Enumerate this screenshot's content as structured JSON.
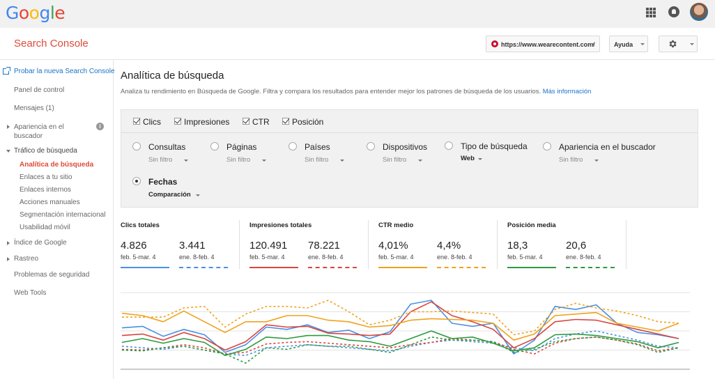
{
  "topbar": {
    "logo_letters": [
      {
        "ch": "G",
        "color": "#4285f4"
      },
      {
        "ch": "o",
        "color": "#ea4335"
      },
      {
        "ch": "o",
        "color": "#fbbc05"
      },
      {
        "ch": "g",
        "color": "#4285f4"
      },
      {
        "ch": "l",
        "color": "#34a853"
      },
      {
        "ch": "e",
        "color": "#ea4335"
      }
    ],
    "icons": [
      "apps-icon",
      "notifications-icon",
      "avatar"
    ]
  },
  "header": {
    "app_title": "Search Console",
    "site_url": "https://www.wearecontent.com/",
    "help_label": "Ayuda",
    "settings_icon": "gear-icon"
  },
  "sidebar": {
    "try_new": "Probar la nueva Search Console",
    "dashboard": "Panel de control",
    "messages": "Mensajes (1)",
    "appearance": "Apariencia en el buscador",
    "search_traffic": "Tráfico de búsqueda",
    "search_analytics": "Analítica de búsqueda",
    "links_to_site": "Enlaces a tu sitio",
    "internal_links": "Enlaces internos",
    "manual_actions": "Acciones manuales",
    "intl_targeting": "Segmentación internacional",
    "mobile_usability": "Usabilidad móvil",
    "google_index": "Índice de Google",
    "crawl": "Rastreo",
    "security_issues": "Problemas de seguridad",
    "web_tools": "Web Tools"
  },
  "main": {
    "title": "Analítica de búsqueda",
    "description": "Analiza tu rendimiento en Búsqueda de Google. Filtra y compara los resultados para entender mejor los patrones de búsqueda de los usuarios.",
    "more_info": "Más información",
    "metrics": [
      {
        "label": "Clics",
        "checked": true
      },
      {
        "label": "Impresiones",
        "checked": true
      },
      {
        "label": "CTR",
        "checked": true
      },
      {
        "label": "Posición",
        "checked": true
      }
    ],
    "dimensions": {
      "queries": {
        "label": "Consultas",
        "sub": "Sin filtro"
      },
      "pages": {
        "label": "Páginas",
        "sub": "Sin filtro"
      },
      "countries": {
        "label": "Países",
        "sub": "Sin filtro"
      },
      "devices": {
        "label": "Dispositivos",
        "sub": "Sin filtro"
      },
      "search_type": {
        "label": "Tipo de búsqueda",
        "sub": "Web"
      },
      "appearance": {
        "label": "Apariencia en el buscador",
        "sub": "Sin filtro"
      },
      "dates": {
        "label": "Fechas",
        "sub": "Comparación",
        "selected": true
      }
    },
    "stats": [
      {
        "title": "Clics totales",
        "a": "4.826",
        "a_range": "feb. 5-mar. 4",
        "b": "3.441",
        "b_range": "ene. 8-feb. 4",
        "color": "#4a90e2"
      },
      {
        "title": "Impresiones totales",
        "a": "120.491",
        "a_range": "feb. 5-mar. 4",
        "b": "78.221",
        "b_range": "ene. 8-feb. 4",
        "color": "#d9453f"
      },
      {
        "title": "CTR medio",
        "a": "4,01%",
        "a_range": "feb. 5-mar. 4",
        "b": "4,4%",
        "b_range": "ene. 8-feb. 4",
        "color": "#f0a21c"
      },
      {
        "title": "Posición media",
        "a": "18,3",
        "a_range": "feb. 5-mar. 4",
        "b": "20,6",
        "b_range": "ene. 8-feb. 4",
        "color": "#2b9a3e"
      }
    ]
  },
  "chart_data": {
    "type": "line",
    "grid": true,
    "ylim": [
      0,
      100
    ],
    "series": [
      {
        "name": "Clics totales",
        "period": "feb. 5-mar. 4",
        "style": "solid",
        "color": "#4a90e2",
        "values": [
          54,
          56,
          43,
          52,
          45,
          22,
          32,
          55,
          52,
          58,
          48,
          51,
          40,
          49,
          85,
          90,
          60,
          56,
          60,
          20,
          38,
          82,
          78,
          84,
          60,
          48,
          45,
          40
        ]
      },
      {
        "name": "Clics totales",
        "period": "ene. 8-feb. 4",
        "style": "dashed",
        "color": "#4a90e2",
        "values": [
          30,
          28,
          26,
          30,
          25,
          20,
          18,
          28,
          30,
          32,
          30,
          28,
          26,
          24,
          30,
          35,
          38,
          36,
          34,
          28,
          24,
          40,
          46,
          50,
          44,
          38,
          30,
          28
        ]
      },
      {
        "name": "Impresiones totales",
        "period": "feb. 5-mar. 4",
        "style": "solid",
        "color": "#d9453f",
        "values": [
          44,
          46,
          38,
          48,
          40,
          25,
          36,
          58,
          55,
          56,
          47,
          46,
          44,
          46,
          75,
          88,
          70,
          62,
          52,
          28,
          40,
          62,
          65,
          64,
          58,
          52,
          46,
          40
        ]
      },
      {
        "name": "Impresiones totales",
        "period": "ene. 8-feb. 4",
        "style": "dashed",
        "color": "#d9453f",
        "values": [
          26,
          25,
          28,
          32,
          28,
          20,
          22,
          33,
          35,
          36,
          34,
          32,
          30,
          28,
          32,
          35,
          40,
          38,
          36,
          26,
          20,
          34,
          40,
          42,
          38,
          33,
          24,
          28
        ]
      },
      {
        "name": "CTR medio",
        "period": "feb. 5-mar. 4",
        "style": "solid",
        "color": "#f0a21c",
        "values": [
          73,
          70,
          62,
          76,
          62,
          48,
          62,
          62,
          70,
          70,
          64,
          62,
          55,
          57,
          64,
          66,
          65,
          64,
          60,
          38,
          46,
          70,
          72,
          74,
          60,
          55,
          50,
          60
        ]
      },
      {
        "name": "CTR medio",
        "period": "ene. 8-feb. 4",
        "style": "dashed",
        "color": "#f0a21c",
        "values": [
          68,
          68,
          68,
          80,
          82,
          55,
          72,
          82,
          82,
          80,
          90,
          75,
          58,
          64,
          75,
          75,
          76,
          74,
          72,
          45,
          50,
          78,
          86,
          80,
          76,
          70,
          62,
          60
        ]
      },
      {
        "name": "Posición media",
        "period": "feb. 5-mar. 4",
        "style": "solid",
        "color": "#2b9a3e",
        "values": [
          35,
          40,
          34,
          40,
          35,
          18,
          26,
          42,
          40,
          44,
          44,
          38,
          36,
          30,
          40,
          50,
          40,
          42,
          34,
          24,
          28,
          45,
          46,
          44,
          40,
          36,
          28,
          35
        ]
      },
      {
        "name": "Posición media",
        "period": "ene. 8-feb. 4",
        "style": "dashed",
        "color": "#2b9a3e",
        "values": [
          25,
          24,
          28,
          30,
          25,
          20,
          8,
          28,
          26,
          32,
          30,
          30,
          26,
          22,
          32,
          42,
          38,
          38,
          36,
          22,
          26,
          36,
          40,
          42,
          38,
          32,
          22,
          28
        ]
      }
    ]
  }
}
